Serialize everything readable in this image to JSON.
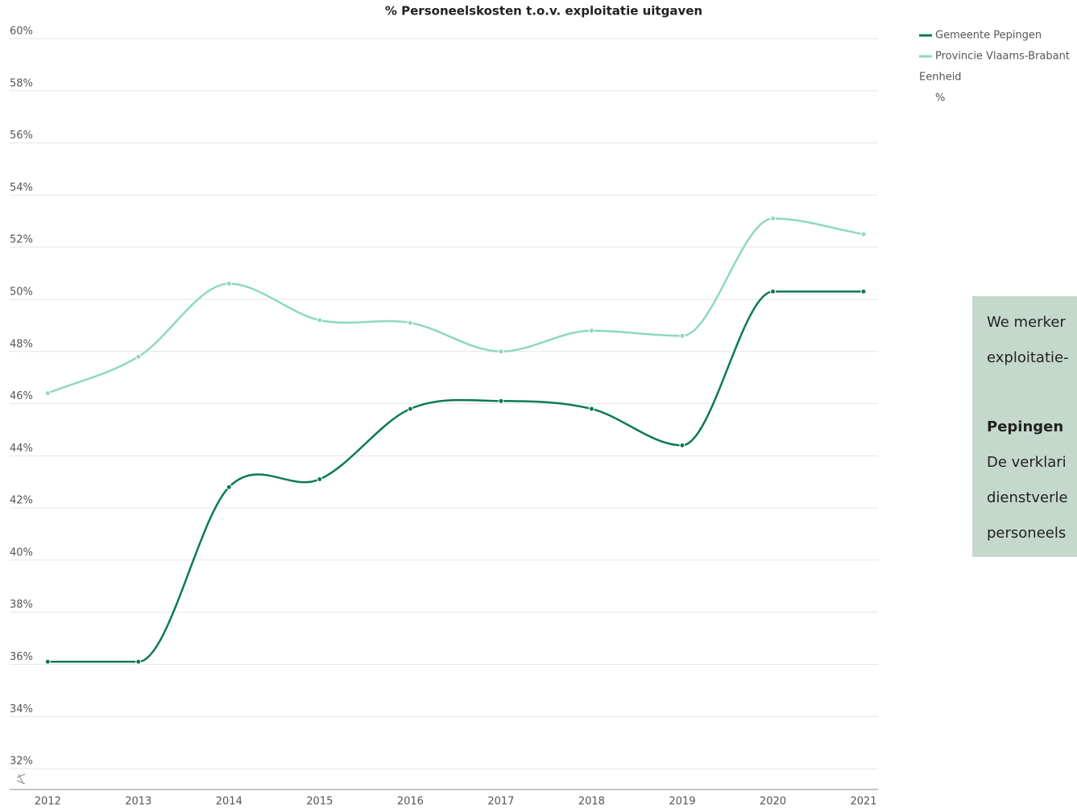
{
  "chart_data": {
    "type": "line",
    "title": "% Personeelskosten t.o.v. exploitatie uitgaven",
    "x": [
      2012,
      2013,
      2014,
      2015,
      2016,
      2017,
      2018,
      2019,
      2020,
      2021
    ],
    "xlim": [
      2011.58,
      2021.16
    ],
    "xticks": [
      2012,
      2013,
      2014,
      2015,
      2016,
      2017,
      2018,
      2019,
      2020,
      2021
    ],
    "series": [
      {
        "name": "Gemeente Pepingen",
        "color": "#0b7a55",
        "values": [
          36.1,
          36.1,
          42.8,
          43.1,
          45.8,
          46.1,
          45.8,
          44.4,
          50.3,
          50.3
        ]
      },
      {
        "name": "Provincie Vlaams-Brabant",
        "color": "#8ed8c3",
        "values": [
          46.4,
          47.8,
          50.6,
          49.2,
          49.1,
          48.0,
          48.8,
          48.6,
          53.1,
          52.5
        ]
      }
    ],
    "ylim": [
      31.2,
      60
    ],
    "yticks": [
      {
        "value": 32,
        "label": "32%"
      },
      {
        "value": 34,
        "label": "34%"
      },
      {
        "value": 36,
        "label": "36%"
      },
      {
        "value": 38,
        "label": "38%"
      },
      {
        "value": 40,
        "label": "40%"
      },
      {
        "value": 42,
        "label": "42%"
      },
      {
        "value": 44,
        "label": "44%"
      },
      {
        "value": 46,
        "label": "46%"
      },
      {
        "value": 48,
        "label": "48%"
      },
      {
        "value": 50,
        "label": "50%"
      },
      {
        "value": 52,
        "label": "52%"
      },
      {
        "value": 54,
        "label": "54%"
      },
      {
        "value": 56,
        "label": "56%"
      },
      {
        "value": 58,
        "label": "58%"
      },
      {
        "value": 60,
        "label": "60%"
      }
    ],
    "grid": true,
    "legend_title": "Eenheid",
    "legend_unit": "%"
  },
  "note": {
    "lines": [
      "We merker",
      "exploitatie-",
      "Pepingen",
      "De verklari",
      "dienstverle",
      "personeels"
    ]
  }
}
